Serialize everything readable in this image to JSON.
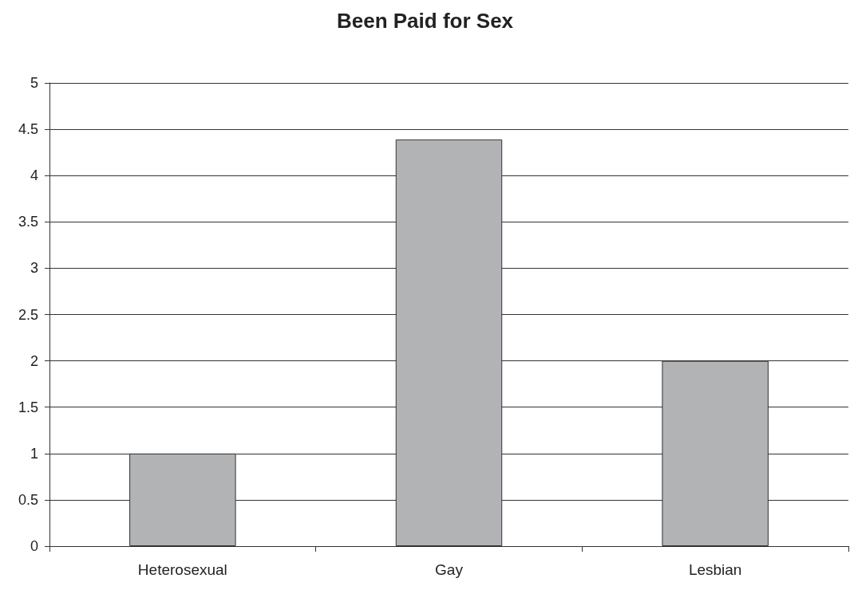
{
  "chart_data": {
    "type": "bar",
    "title": "Been Paid for Sex",
    "categories": [
      "Heterosexual",
      "Gay",
      "Lesbian"
    ],
    "values": [
      1,
      4.39,
      2
    ],
    "color": "#b2b3b5",
    "ylim": [
      0,
      5
    ],
    "yticks": [
      0,
      0.5,
      1,
      1.5,
      2,
      2.5,
      3,
      3.5,
      4,
      4.5,
      5
    ],
    "grid": "y"
  }
}
